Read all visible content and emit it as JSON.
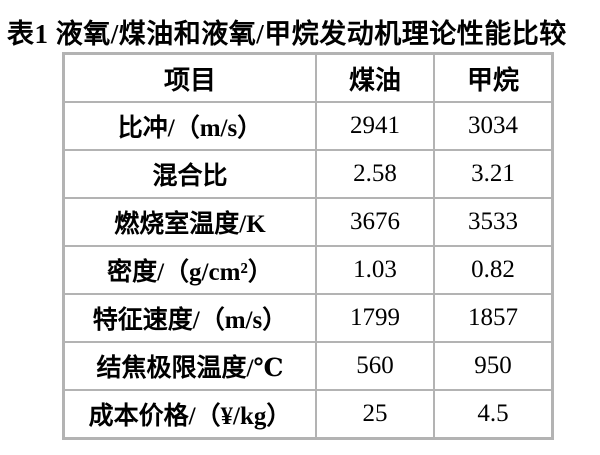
{
  "title": "表1 液氧/煤油和液氧/甲烷发动机理论性能比较",
  "table": {
    "headers": {
      "item": "项目",
      "kerosene": "煤油",
      "methane": "甲烷"
    },
    "rows": [
      {
        "label": "比冲/（m/s）",
        "kerosene": "2941",
        "methane": "3034"
      },
      {
        "label": "混合比",
        "kerosene": "2.58",
        "methane": "3.21"
      },
      {
        "label": "燃烧室温度/K",
        "kerosene": "3676",
        "methane": "3533"
      },
      {
        "label": "密度/（g/cm²）",
        "kerosene": "1.03",
        "methane": "0.82"
      },
      {
        "label": "特征速度/（m/s）",
        "kerosene": "1799",
        "methane": "1857"
      },
      {
        "label": "结焦极限温度/℃",
        "kerosene": "560",
        "methane": "950"
      },
      {
        "label": "成本价格/（¥/kg）",
        "kerosene": "25",
        "methane": "4.5"
      }
    ]
  },
  "colors": {
    "border": "#b3b3b3",
    "text": "#000000",
    "background": "#ffffff"
  }
}
